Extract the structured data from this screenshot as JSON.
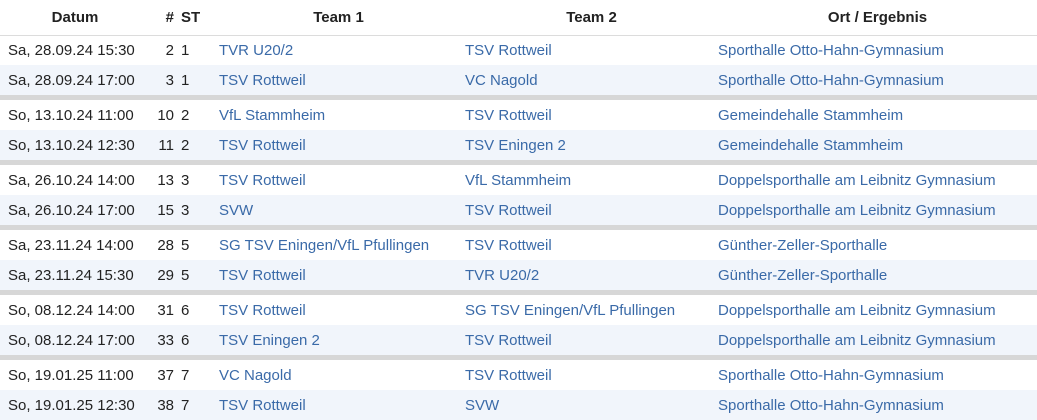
{
  "headers": {
    "date": "Datum",
    "number": "#",
    "st": "ST",
    "team1": "Team 1",
    "team2": "Team 2",
    "location": "Ort / Ergebnis"
  },
  "rows": [
    {
      "date": "Sa, 28.09.24 15:30",
      "num": "2",
      "st": "1",
      "team1": "TVR U20/2",
      "team2": "TSV Rottweil",
      "location": "Sporthalle Otto-Hahn-Gymnasium"
    },
    {
      "date": "Sa, 28.09.24 17:00",
      "num": "3",
      "st": "1",
      "team1": "TSV Rottweil",
      "team2": "VC Nagold",
      "location": "Sporthalle Otto-Hahn-Gymnasium"
    },
    {
      "date": "So, 13.10.24 11:00",
      "num": "10",
      "st": "2",
      "team1": "VfL Stammheim",
      "team2": "TSV Rottweil",
      "location": "Gemeindehalle Stammheim"
    },
    {
      "date": "So, 13.10.24 12:30",
      "num": "11",
      "st": "2",
      "team1": "TSV Rottweil",
      "team2": "TSV Eningen 2",
      "location": "Gemeindehalle Stammheim"
    },
    {
      "date": "Sa, 26.10.24 14:00",
      "num": "13",
      "st": "3",
      "team1": "TSV Rottweil",
      "team2": "VfL Stammheim",
      "location": "Doppelsporthalle am Leibnitz Gymnasium"
    },
    {
      "date": "Sa, 26.10.24 17:00",
      "num": "15",
      "st": "3",
      "team1": "SVW",
      "team2": "TSV Rottweil",
      "location": "Doppelsporthalle am Leibnitz Gymnasium"
    },
    {
      "date": "Sa, 23.11.24 14:00",
      "num": "28",
      "st": "5",
      "team1": "SG TSV Eningen/VfL Pfullingen",
      "team2": "TSV Rottweil",
      "location": "Günther-Zeller-Sporthalle"
    },
    {
      "date": "Sa, 23.11.24 15:30",
      "num": "29",
      "st": "5",
      "team1": "TSV Rottweil",
      "team2": "TVR U20/2",
      "location": "Günther-Zeller-Sporthalle"
    },
    {
      "date": "So, 08.12.24 14:00",
      "num": "31",
      "st": "6",
      "team1": "TSV Rottweil",
      "team2": "SG TSV Eningen/VfL Pfullingen",
      "location": "Doppelsporthalle am Leibnitz Gymnasium"
    },
    {
      "date": "So, 08.12.24 17:00",
      "num": "33",
      "st": "6",
      "team1": "TSV Eningen 2",
      "team2": "TSV Rottweil",
      "location": "Doppelsporthalle am Leibnitz Gymnasium"
    },
    {
      "date": "So, 19.01.25 11:00",
      "num": "37",
      "st": "7",
      "team1": "VC Nagold",
      "team2": "TSV Rottweil",
      "location": "Sporthalle Otto-Hahn-Gymnasium"
    },
    {
      "date": "So, 19.01.25 12:30",
      "num": "38",
      "st": "7",
      "team1": "TSV Rottweil",
      "team2": "SVW",
      "location": "Sporthalle Otto-Hahn-Gymnasium"
    }
  ]
}
